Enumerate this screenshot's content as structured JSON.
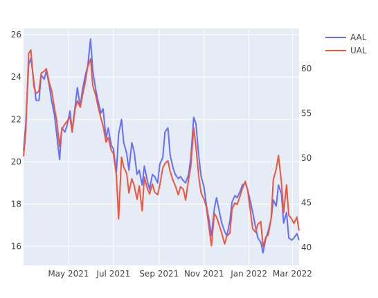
{
  "chart_data": {
    "type": "line",
    "x_ticks": [
      "May 2021",
      "Jul 2021",
      "Sep 2021",
      "Nov 2021",
      "Jan 2022",
      "Mar 2022"
    ],
    "x_tick_dates": [
      "2021-05-01",
      "2021-07-01",
      "2021-09-01",
      "2021-11-01",
      "2022-01-01",
      "2022-03-01"
    ],
    "xlim": [
      "2021-03-01",
      "2022-03-10"
    ],
    "y_left": {
      "ticks": [
        "16",
        "18",
        "20",
        "22",
        "24",
        "26"
      ],
      "tick_values": [
        16,
        18,
        20,
        22,
        24,
        26
      ],
      "ylim": [
        15.1,
        26.3
      ]
    },
    "y_right": {
      "ticks": [
        "40",
        "45",
        "50",
        "55",
        "60"
      ],
      "tick_values": [
        40,
        45,
        50,
        55,
        60
      ],
      "ylim": [
        38.0,
        64.5
      ]
    },
    "legend": {
      "placement": "top-right",
      "entries": [
        "AAL",
        "UAL"
      ]
    },
    "grid": true,
    "colors": {
      "AAL": "#636efa",
      "UAL": "#ef553b",
      "plot_bg": "#e5ecf6"
    },
    "series": [
      {
        "name": "AAL",
        "axis": "left",
        "x": [
          "2021-03-01",
          "2021-03-04",
          "2021-03-08",
          "2021-03-11",
          "2021-03-15",
          "2021-03-18",
          "2021-03-22",
          "2021-03-25",
          "2021-03-29",
          "2021-04-01",
          "2021-04-05",
          "2021-04-08",
          "2021-04-12",
          "2021-04-15",
          "2021-04-19",
          "2021-04-22",
          "2021-04-26",
          "2021-04-29",
          "2021-05-03",
          "2021-05-06",
          "2021-05-10",
          "2021-05-13",
          "2021-05-17",
          "2021-05-20",
          "2021-05-24",
          "2021-05-27",
          "2021-05-31",
          "2021-06-03",
          "2021-06-07",
          "2021-06-10",
          "2021-06-14",
          "2021-06-17",
          "2021-06-21",
          "2021-06-24",
          "2021-06-28",
          "2021-07-01",
          "2021-07-05",
          "2021-07-08",
          "2021-07-12",
          "2021-07-15",
          "2021-07-19",
          "2021-07-22",
          "2021-07-26",
          "2021-07-29",
          "2021-08-02",
          "2021-08-05",
          "2021-08-09",
          "2021-08-12",
          "2021-08-16",
          "2021-08-19",
          "2021-08-23",
          "2021-08-26",
          "2021-08-30",
          "2021-09-02",
          "2021-09-06",
          "2021-09-09",
          "2021-09-13",
          "2021-09-16",
          "2021-09-20",
          "2021-09-23",
          "2021-09-27",
          "2021-09-30",
          "2021-10-04",
          "2021-10-07",
          "2021-10-11",
          "2021-10-14",
          "2021-10-18",
          "2021-10-21",
          "2021-10-25",
          "2021-10-28",
          "2021-11-01",
          "2021-11-04",
          "2021-11-08",
          "2021-11-11",
          "2021-11-15",
          "2021-11-18",
          "2021-11-22",
          "2021-11-25",
          "2021-11-29",
          "2021-12-02",
          "2021-12-06",
          "2021-12-09",
          "2021-12-13",
          "2021-12-16",
          "2021-12-20",
          "2021-12-23",
          "2021-12-27",
          "2021-12-30",
          "2022-01-03",
          "2022-01-06",
          "2022-01-10",
          "2022-01-13",
          "2022-01-17",
          "2022-01-20",
          "2022-01-24",
          "2022-01-27",
          "2022-01-31",
          "2022-02-03",
          "2022-02-07",
          "2022-02-10",
          "2022-02-14",
          "2022-02-17",
          "2022-02-21",
          "2022-02-24",
          "2022-02-28",
          "2022-03-03",
          "2022-03-07",
          "2022-03-10"
        ],
        "values": [
          20.5,
          21.8,
          24.6,
          24.9,
          23.8,
          22.9,
          22.9,
          24.1,
          23.9,
          24.3,
          23.6,
          22.9,
          22.2,
          21.3,
          20.1,
          21.6,
          21.4,
          21.7,
          22.4,
          21.5,
          22.6,
          23.5,
          22.6,
          23.4,
          24.1,
          24.5,
          25.8,
          24.3,
          23.4,
          22.9,
          22.3,
          22.5,
          21.1,
          21.6,
          20.8,
          20.6,
          19.5,
          21.3,
          22.0,
          20.9,
          20.4,
          19.6,
          20.9,
          20.5,
          19.4,
          19.6,
          18.9,
          19.8,
          19.1,
          18.7,
          19.4,
          19.3,
          19.0,
          19.9,
          20.2,
          21.4,
          21.6,
          20.3,
          19.7,
          19.4,
          19.2,
          19.3,
          19.1,
          19.0,
          19.4,
          20.2,
          22.1,
          21.8,
          20.2,
          19.3,
          18.8,
          18.0,
          17.2,
          16.5,
          17.8,
          18.3,
          17.6,
          17.1,
          16.7,
          16.5,
          17.2,
          18.1,
          18.4,
          18.3,
          18.6,
          18.9,
          19.0,
          18.7,
          18.1,
          17.6,
          16.9,
          16.4,
          16.2,
          15.7,
          16.4,
          16.7,
          17.3,
          18.2,
          17.9,
          18.9,
          18.5,
          17.1,
          17.6,
          16.4,
          16.3,
          16.4,
          16.6,
          16.3
        ]
      },
      {
        "name": "UAL",
        "axis": "right",
        "x": [
          "2021-03-01",
          "2021-03-04",
          "2021-03-08",
          "2021-03-11",
          "2021-03-15",
          "2021-03-18",
          "2021-03-22",
          "2021-03-25",
          "2021-03-29",
          "2021-04-01",
          "2021-04-05",
          "2021-04-08",
          "2021-04-12",
          "2021-04-15",
          "2021-04-19",
          "2021-04-22",
          "2021-04-26",
          "2021-04-29",
          "2021-05-03",
          "2021-05-06",
          "2021-05-10",
          "2021-05-13",
          "2021-05-17",
          "2021-05-20",
          "2021-05-24",
          "2021-05-27",
          "2021-05-31",
          "2021-06-03",
          "2021-06-07",
          "2021-06-10",
          "2021-06-14",
          "2021-06-17",
          "2021-06-21",
          "2021-06-24",
          "2021-06-28",
          "2021-07-01",
          "2021-07-05",
          "2021-07-08",
          "2021-07-12",
          "2021-07-15",
          "2021-07-19",
          "2021-07-22",
          "2021-07-26",
          "2021-07-29",
          "2021-08-02",
          "2021-08-05",
          "2021-08-09",
          "2021-08-12",
          "2021-08-16",
          "2021-08-19",
          "2021-08-23",
          "2021-08-26",
          "2021-08-30",
          "2021-09-02",
          "2021-09-06",
          "2021-09-09",
          "2021-09-13",
          "2021-09-16",
          "2021-09-20",
          "2021-09-23",
          "2021-09-27",
          "2021-09-30",
          "2021-10-04",
          "2021-10-07",
          "2021-10-11",
          "2021-10-14",
          "2021-10-18",
          "2021-10-21",
          "2021-10-25",
          "2021-10-28",
          "2021-11-01",
          "2021-11-04",
          "2021-11-08",
          "2021-11-11",
          "2021-11-15",
          "2021-11-18",
          "2021-11-22",
          "2021-11-25",
          "2021-11-29",
          "2021-12-02",
          "2021-12-06",
          "2021-12-09",
          "2021-12-13",
          "2021-12-16",
          "2021-12-20",
          "2021-12-23",
          "2021-12-27",
          "2021-12-30",
          "2022-01-03",
          "2022-01-06",
          "2022-01-10",
          "2022-01-13",
          "2022-01-17",
          "2022-01-20",
          "2022-01-24",
          "2022-01-27",
          "2022-01-31",
          "2022-02-03",
          "2022-02-07",
          "2022-02-10",
          "2022-02-14",
          "2022-02-17",
          "2022-02-21",
          "2022-02-24",
          "2022-02-28",
          "2022-03-03",
          "2022-03-07",
          "2022-03-10"
        ],
        "values": [
          50.2,
          52.9,
          61.7,
          62.1,
          58.0,
          57.2,
          57.5,
          59.5,
          59.7,
          60.0,
          58.4,
          57.6,
          55.6,
          54.2,
          51.3,
          53.2,
          53.8,
          54.1,
          54.6,
          52.9,
          55.5,
          56.4,
          55.7,
          57.0,
          58.6,
          60.2,
          61.1,
          58.1,
          57.0,
          55.8,
          54.5,
          53.6,
          51.8,
          52.3,
          50.9,
          50.5,
          48.1,
          43.2,
          50.1,
          49.0,
          48.3,
          46.1,
          47.7,
          47.0,
          45.4,
          46.9,
          44.1,
          47.9,
          46.6,
          46.0,
          47.1,
          46.2,
          45.9,
          47.0,
          48.9,
          49.4,
          49.7,
          48.5,
          47.5,
          46.9,
          45.9,
          46.8,
          46.5,
          45.3,
          47.6,
          49.1,
          53.4,
          51.3,
          47.8,
          46.1,
          45.4,
          44.6,
          42.1,
          40.2,
          43.8,
          43.4,
          42.4,
          41.6,
          40.4,
          41.3,
          41.6,
          44.3,
          45.0,
          44.8,
          45.8,
          46.6,
          47.4,
          46.5,
          44.0,
          42.1,
          41.7,
          42.6,
          42.9,
          40.1,
          41.2,
          41.4,
          43.2,
          47.6,
          48.8,
          50.3,
          47.3,
          43.9,
          47.0,
          43.6,
          43.2,
          42.7,
          43.4,
          41.9
        ]
      }
    ]
  }
}
